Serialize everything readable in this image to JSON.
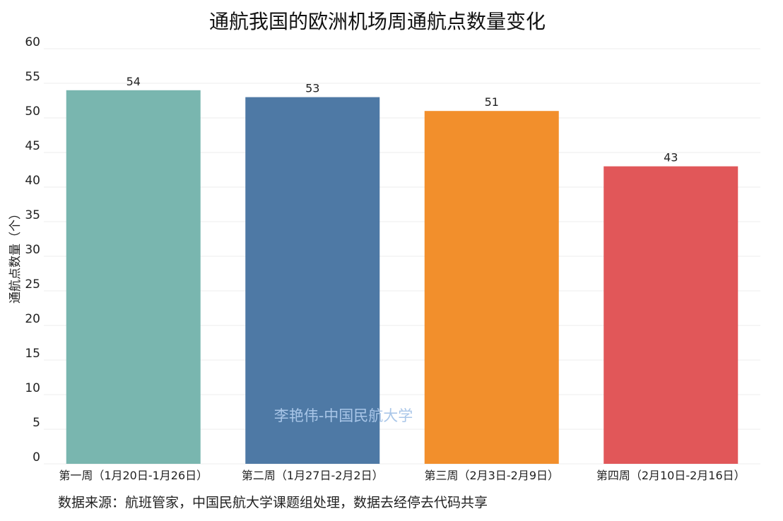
{
  "chart_data": {
    "type": "bar",
    "title": "通航我国的欧洲机场周通航点数量变化",
    "ylabel": "通航点数量（个）",
    "xlabel": "",
    "categories": [
      "第一周（1月20日-1月26日）",
      "第二周（1月27日-2月2日）",
      "第三周（2月3日-2月9日）",
      "第四周（2月10日-2月16日）"
    ],
    "values": [
      54,
      53,
      51,
      43
    ],
    "colors": [
      "#79b6af",
      "#4e79a5",
      "#f28f2c",
      "#e15759"
    ],
    "ylim": [
      0,
      60
    ],
    "yticks": [
      0,
      5,
      10,
      15,
      20,
      25,
      30,
      35,
      40,
      45,
      50,
      55,
      60
    ],
    "grid": true,
    "legend": "none"
  },
  "source_note": "数据来源：航班管家，中国民航大学课题组处理，数据去经停去代码共享",
  "watermark": "李艳伟-中国民航大学"
}
